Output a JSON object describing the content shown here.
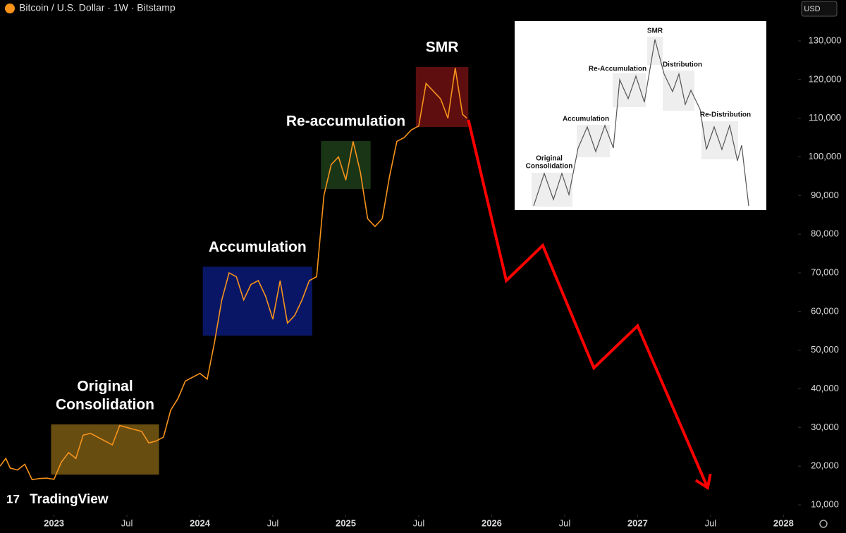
{
  "header": {
    "symbol": "Bitcoin / U.S. Dollar · 1W · Bitstamp",
    "currency": "USD",
    "brand": "TradingView"
  },
  "chart_data": {
    "type": "line",
    "xlim": [
      2022.63,
      2028.09
    ],
    "ylim": [
      7450,
      140580
    ],
    "xticks": [
      {
        "value": 2023,
        "label": "2023"
      },
      {
        "value": 2023.5,
        "label": "Jul"
      },
      {
        "value": 2024,
        "label": "2024"
      },
      {
        "value": 2024.5,
        "label": "Jul"
      },
      {
        "value": 2025,
        "label": "2025"
      },
      {
        "value": 2025.5,
        "label": "Jul"
      },
      {
        "value": 2026,
        "label": "2026"
      },
      {
        "value": 2026.5,
        "label": "Jul"
      },
      {
        "value": 2027,
        "label": "2027"
      },
      {
        "value": 2027.5,
        "label": "Jul"
      },
      {
        "value": 2028,
        "label": "2028"
      }
    ],
    "yticks": [
      {
        "value": 10000,
        "label": "10,000"
      },
      {
        "value": 20000,
        "label": "20,000"
      },
      {
        "value": 30000,
        "label": "30,000"
      },
      {
        "value": 40000,
        "label": "40,000"
      },
      {
        "value": 50000,
        "label": "50,000"
      },
      {
        "value": 60000,
        "label": "60,000"
      },
      {
        "value": 70000,
        "label": "70,000"
      },
      {
        "value": 80000,
        "label": "80,000"
      },
      {
        "value": 90000,
        "label": "90,000"
      },
      {
        "value": 100000,
        "label": "100,000"
      },
      {
        "value": 110000,
        "label": "110,000"
      },
      {
        "value": 120000,
        "label": "120,000"
      },
      {
        "value": 130000,
        "label": "130,000"
      }
    ],
    "series": [
      {
        "color": "#f7931a",
        "x": [
          2022.63,
          2022.67,
          2022.7,
          2022.75,
          2022.8,
          2022.85,
          2022.9,
          2022.95,
          2023.0,
          2023.05,
          2023.1,
          2023.15,
          2023.2,
          2023.25,
          2023.3,
          2023.35,
          2023.4,
          2023.45,
          2023.5,
          2023.55,
          2023.6,
          2023.65,
          2023.7,
          2023.75,
          2023.8,
          2023.85,
          2023.9,
          2023.95,
          2024.0,
          2024.05,
          2024.1,
          2024.15,
          2024.2,
          2024.25,
          2024.3,
          2024.35,
          2024.4,
          2024.45,
          2024.5,
          2024.55,
          2024.6,
          2024.65,
          2024.7,
          2024.75,
          2024.8,
          2024.85,
          2024.9,
          2024.95,
          2025.0,
          2025.05,
          2025.1,
          2025.15,
          2025.2,
          2025.25,
          2025.3,
          2025.35,
          2025.4,
          2025.45,
          2025.5,
          2025.55,
          2025.6,
          2025.65,
          2025.7,
          2025.75,
          2025.8,
          2025.83
        ],
        "values": [
          20000,
          22000,
          19500,
          19000,
          20500,
          16500,
          16800,
          16900,
          16600,
          21000,
          23500,
          22000,
          28000,
          28500,
          27500,
          26500,
          25500,
          30500,
          30000,
          29500,
          29000,
          26000,
          26500,
          27500,
          34500,
          37500,
          42000,
          43000,
          44000,
          42500,
          52000,
          63000,
          70000,
          69000,
          63000,
          67000,
          68000,
          64000,
          58000,
          68000,
          57000,
          59000,
          63000,
          68000,
          69000,
          90000,
          98000,
          100000,
          94000,
          104000,
          96000,
          84000,
          82000,
          84000,
          95000,
          104000,
          105000,
          107000,
          108000,
          119000,
          117000,
          115000,
          110000,
          123000,
          111000,
          110000
        ]
      },
      {
        "color": "#ff0000",
        "x": [
          2025.84,
          2026.1,
          2026.35,
          2026.7,
          2027.0,
          2027.48
        ],
        "values": [
          109600,
          68000,
          77100,
          45400,
          56300,
          14400
        ]
      }
    ],
    "zones": [
      {
        "label": [
          "Original",
          "Consolidation"
        ],
        "color": "#7a5a14",
        "x": [
          2022.98,
          2023.72
        ],
        "y": [
          17800,
          30800
        ]
      },
      {
        "label": [
          "Accumulation"
        ],
        "color": "#0b1a78",
        "x": [
          2024.02,
          2024.77
        ],
        "y": [
          53760,
          71600
        ]
      },
      {
        "label": [
          "Re-accumulation"
        ],
        "color": "#1e3d1a",
        "x": [
          2024.83,
          2025.17
        ],
        "y": [
          91700,
          104100
        ]
      },
      {
        "label": [
          "SMR"
        ],
        "color": "#6e1010",
        "x": [
          2025.48,
          2025.84
        ],
        "y": [
          107750,
          123250
        ]
      }
    ]
  },
  "inset": {
    "labels": [
      "SMR",
      "Re-Accumulation",
      "Distribution",
      "Accumulation",
      "Re-Distribution",
      "Original",
      "Consolidation"
    ]
  }
}
